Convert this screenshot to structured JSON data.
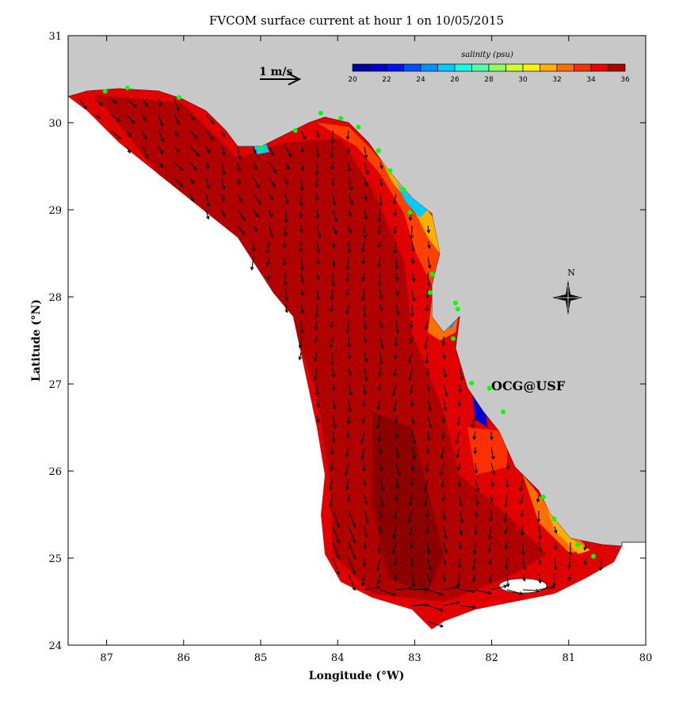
{
  "chart_data": {
    "type": "vector-field-map",
    "title": "FVCOM surface current at hour 1 on 10/05/2015",
    "xlabel": "Longitude (°W)",
    "ylabel": "Latitude (°N)",
    "xlim": [
      87.5,
      80
    ],
    "ylim": [
      24,
      31
    ],
    "xticks": [
      "87",
      "86",
      "85",
      "84",
      "83",
      "82",
      "81",
      "80"
    ],
    "yticks": [
      "31",
      "30",
      "29",
      "28",
      "27",
      "26",
      "25",
      "24"
    ],
    "scale_arrow_label": "1 m/s",
    "colorbar": {
      "label": "salinity (psu)",
      "range": [
        20,
        36
      ],
      "tick_labels": [
        "20",
        "22",
        "24",
        "26",
        "28",
        "30",
        "32",
        "34",
        "36"
      ],
      "colors": [
        "#00009c",
        "#0000cc",
        "#0010ff",
        "#0050ff",
        "#0090ff",
        "#00ccff",
        "#10ffe8",
        "#50ffa8",
        "#90ff60",
        "#d0ff30",
        "#fff000",
        "#ffb000",
        "#ff7000",
        "#ff3000",
        "#f00000",
        "#b00000"
      ]
    },
    "annotation": "OCG@USF",
    "annotation_color": "#ff0000",
    "compass_label": "N",
    "land_color": "#c8c8c8",
    "station_color": "#00ff00",
    "stations": [
      [
        87.02,
        30.36
      ],
      [
        86.73,
        30.4
      ],
      [
        86.06,
        30.29
      ],
      [
        84.99,
        29.71
      ],
      [
        84.55,
        29.91
      ],
      [
        84.22,
        30.11
      ],
      [
        83.96,
        30.05
      ],
      [
        83.73,
        29.95
      ],
      [
        83.47,
        29.68
      ],
      [
        83.32,
        29.45
      ],
      [
        83.14,
        29.23
      ],
      [
        83.06,
        28.97
      ],
      [
        82.77,
        28.26
      ],
      [
        82.8,
        28.05
      ],
      [
        82.47,
        27.93
      ],
      [
        82.44,
        27.86
      ],
      [
        82.5,
        27.52
      ],
      [
        82.26,
        27.01
      ],
      [
        82.03,
        26.95
      ],
      [
        81.85,
        26.68
      ],
      [
        81.33,
        25.7
      ],
      [
        81.19,
        25.45
      ],
      [
        80.88,
        25.15
      ],
      [
        80.68,
        25.02
      ]
    ]
  }
}
